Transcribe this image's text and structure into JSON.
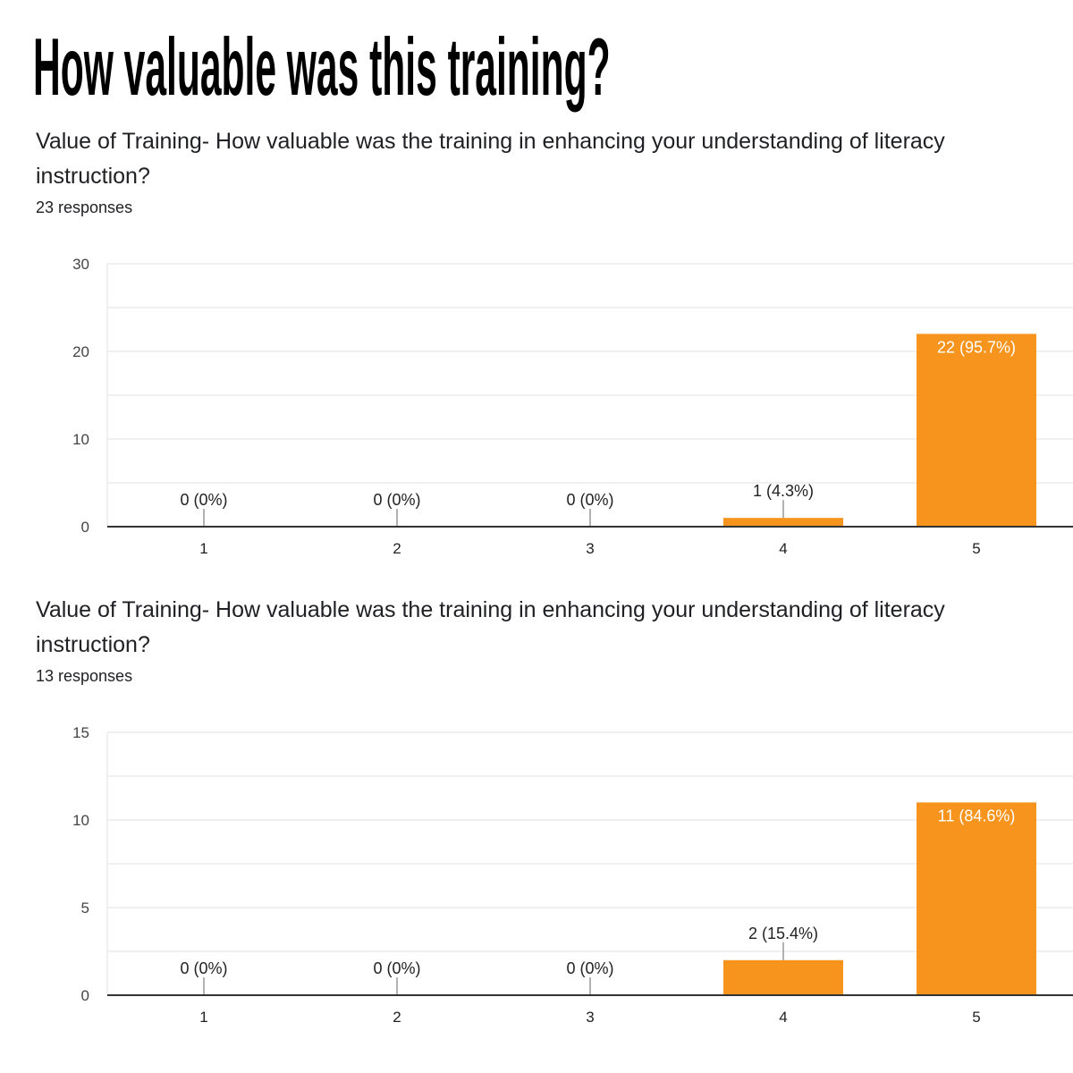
{
  "page_title": "How valuable was this training?",
  "colors": {
    "bar": "#F7941D",
    "grid": "#ebebeb",
    "axis": "#333333",
    "label": "#222222"
  },
  "chart_data": [
    {
      "type": "bar",
      "title": "Value of Training- How valuable was the training in enhancing your understanding of literacy instruction?",
      "subtitle": "23 responses",
      "categories": [
        "1",
        "2",
        "3",
        "4",
        "5"
      ],
      "values": [
        0,
        0,
        0,
        1,
        22
      ],
      "data_labels": [
        "0 (0%)",
        "0 (0%)",
        "0 (0%)",
        "1 (4.3%)",
        "22 (95.7%)"
      ],
      "ylim": [
        0,
        30
      ],
      "yticks": [
        0,
        10,
        20,
        30
      ],
      "ytick_labels": [
        "0",
        "10",
        "20",
        "30"
      ],
      "grid": true,
      "xlabel": "",
      "ylabel": ""
    },
    {
      "type": "bar",
      "title": "Value of Training- How valuable was the training in enhancing your understanding of literacy instruction?",
      "subtitle": "13 responses",
      "categories": [
        "1",
        "2",
        "3",
        "4",
        "5"
      ],
      "values": [
        0,
        0,
        0,
        2,
        11
      ],
      "data_labels": [
        "0 (0%)",
        "0 (0%)",
        "0 (0%)",
        "2 (15.4%)",
        "11 (84.6%)"
      ],
      "ylim": [
        0,
        15
      ],
      "yticks": [
        0,
        5,
        10,
        15
      ],
      "ytick_labels": [
        "0",
        "5",
        "10",
        "15"
      ],
      "grid": true,
      "xlabel": "",
      "ylabel": ""
    }
  ]
}
